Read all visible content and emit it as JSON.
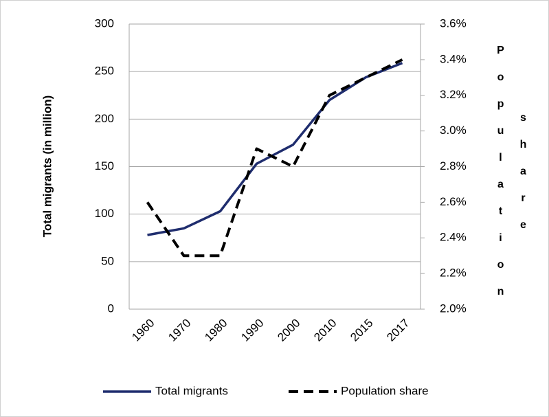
{
  "chart_data": {
    "type": "line",
    "categories": [
      "1960",
      "1970",
      "1980",
      "1990",
      "2000",
      "2010",
      "2015",
      "2017"
    ],
    "ylabel": "Total migrants (in million)",
    "y2label": "Population share",
    "ylim": [
      0,
      300
    ],
    "yticks": [
      0,
      50,
      100,
      150,
      200,
      250,
      300
    ],
    "y2lim": [
      2.0,
      3.6
    ],
    "y2ticks": [
      {
        "value": 2.0,
        "label": "2.0%"
      },
      {
        "value": 2.2,
        "label": "2.2%"
      },
      {
        "value": 2.4,
        "label": "2.4%"
      },
      {
        "value": 2.6,
        "label": "2.6%"
      },
      {
        "value": 2.8,
        "label": "2.8%"
      },
      {
        "value": 3.0,
        "label": "3.0%"
      },
      {
        "value": 3.2,
        "label": "3.2%"
      },
      {
        "value": 3.4,
        "label": "3.4%"
      },
      {
        "value": 3.6,
        "label": "3.6%"
      }
    ],
    "grid": true,
    "legend": "bottom",
    "series": [
      {
        "name": "Total migrants",
        "color": "#1f2d6e",
        "dash": false,
        "values": [
          78,
          85,
          103,
          153,
          173,
          220,
          244,
          259
        ]
      },
      {
        "name": "Population share",
        "color": "#000000",
        "dash": true,
        "axis": "y2",
        "values": [
          2.6,
          2.3,
          2.3,
          2.9,
          2.8,
          3.2,
          3.3,
          3.4
        ]
      }
    ]
  }
}
